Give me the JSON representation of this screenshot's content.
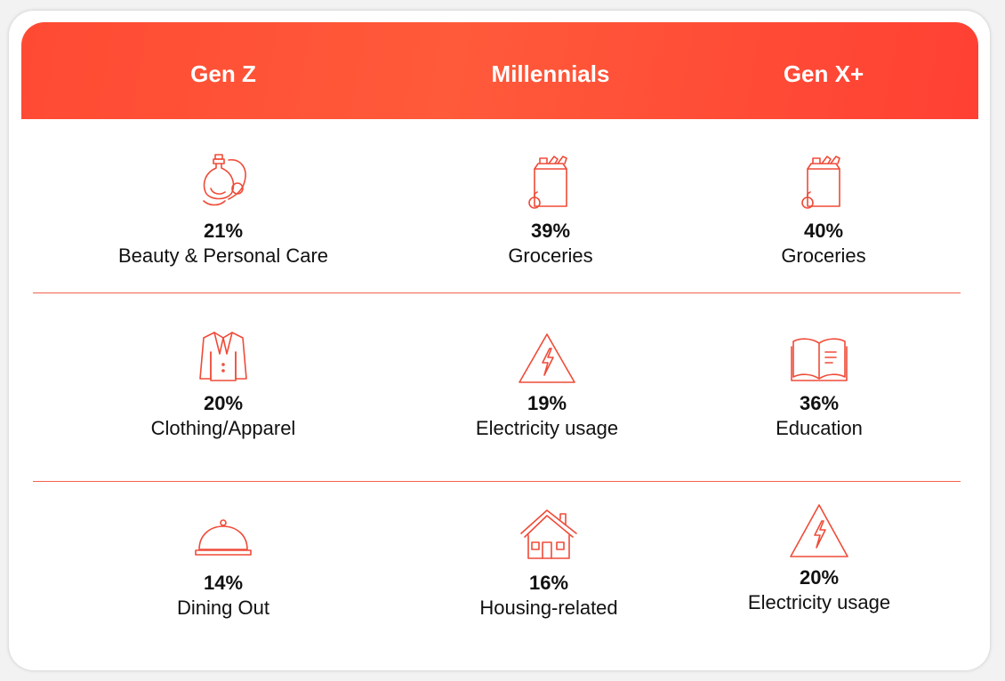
{
  "columns": [
    {
      "heading": "Gen Z"
    },
    {
      "heading": "Millennials"
    },
    {
      "heading": "Gen X+"
    }
  ],
  "rows": [
    [
      {
        "icon": "perfume-icon",
        "value": "21%",
        "label": "Beauty & Personal Care"
      },
      {
        "icon": "grocery-bag-icon",
        "value": "39%",
        "label": "Groceries"
      },
      {
        "icon": "grocery-bag-icon",
        "value": "40%",
        "label": "Groceries"
      }
    ],
    [
      {
        "icon": "jacket-icon",
        "value": "20%",
        "label": "Clothing/Apparel"
      },
      {
        "icon": "electricity-warning-icon",
        "value": "19%",
        "label": "Electricity usage"
      },
      {
        "icon": "open-book-icon",
        "value": "36%",
        "label": "Education"
      }
    ],
    [
      {
        "icon": "food-cloche-icon",
        "value": "14%",
        "label": "Dining Out"
      },
      {
        "icon": "house-icon",
        "value": "16%",
        "label": "Housing-related"
      },
      {
        "icon": "electricity-warning-icon",
        "value": "20%",
        "label": "Electricity usage"
      }
    ]
  ],
  "colors": {
    "accent": "#ff4a33",
    "icon_stroke": "#ef4b38",
    "text": "#111111"
  }
}
